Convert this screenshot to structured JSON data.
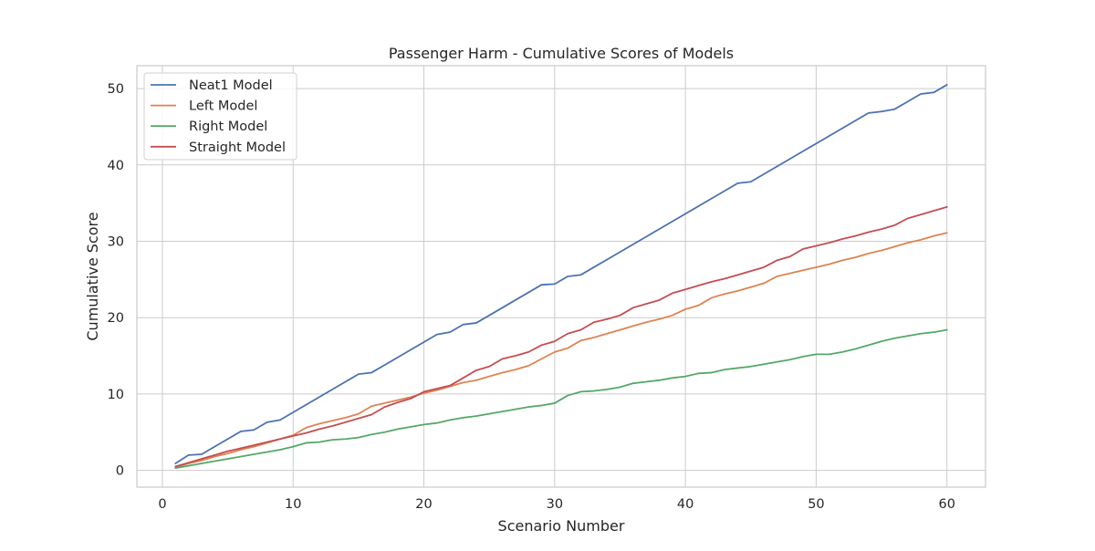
{
  "chart_data": {
    "type": "line",
    "title": "Passenger Harm - Cumulative Scores of Models",
    "xlabel": "Scenario Number",
    "ylabel": "Cumulative Score",
    "xlim": [
      -1.95,
      62.95
    ],
    "ylim": [
      -2.2,
      53.0
    ],
    "xticks": [
      0,
      10,
      20,
      30,
      40,
      50,
      60
    ],
    "yticks": [
      0,
      10,
      20,
      30,
      40,
      50
    ],
    "grid": true,
    "legend_position": "top-left",
    "x": [
      1,
      2,
      3,
      4,
      5,
      6,
      7,
      8,
      9,
      10,
      11,
      12,
      13,
      14,
      15,
      16,
      17,
      18,
      19,
      20,
      21,
      22,
      23,
      24,
      25,
      26,
      27,
      28,
      29,
      30,
      31,
      32,
      33,
      34,
      35,
      36,
      37,
      38,
      39,
      40,
      41,
      42,
      43,
      44,
      45,
      46,
      47,
      48,
      49,
      50,
      51,
      52,
      53,
      54,
      55,
      56,
      57,
      58,
      59,
      60
    ],
    "series": [
      {
        "name": "Neat1 Model",
        "color": "#4c72b0",
        "values": [
          0.9,
          2.0,
          2.1,
          3.1,
          4.1,
          5.1,
          5.3,
          6.3,
          6.6,
          7.6,
          8.6,
          9.6,
          10.6,
          11.6,
          12.6,
          12.8,
          13.8,
          14.8,
          15.8,
          16.8,
          17.8,
          18.1,
          19.1,
          19.3,
          20.3,
          21.3,
          22.3,
          23.3,
          24.3,
          24.4,
          25.4,
          25.6,
          26.6,
          27.6,
          28.6,
          29.6,
          30.6,
          31.6,
          32.6,
          33.6,
          34.6,
          35.6,
          36.6,
          37.6,
          37.8,
          38.8,
          39.8,
          40.8,
          41.8,
          42.8,
          43.8,
          44.8,
          45.8,
          46.8,
          47.0,
          47.3,
          48.3,
          49.3,
          49.5,
          50.5
        ]
      },
      {
        "name": "Left Model",
        "color": "#dd8452",
        "values": [
          0.4,
          0.9,
          1.3,
          1.8,
          2.2,
          2.7,
          3.1,
          3.6,
          4.1,
          4.6,
          5.6,
          6.1,
          6.5,
          6.9,
          7.4,
          8.4,
          8.8,
          9.2,
          9.6,
          10.1,
          10.5,
          11.0,
          11.5,
          11.8,
          12.3,
          12.8,
          13.2,
          13.7,
          14.6,
          15.5,
          16.0,
          17.0,
          17.4,
          17.9,
          18.4,
          18.9,
          19.4,
          19.8,
          20.3,
          21.1,
          21.6,
          22.6,
          23.1,
          23.5,
          24.0,
          24.5,
          25.4,
          25.8,
          26.2,
          26.6,
          27.0,
          27.5,
          27.9,
          28.4,
          28.8,
          29.3,
          29.8,
          30.2,
          30.7,
          31.1
        ]
      },
      {
        "name": "Right Model",
        "color": "#55a868",
        "values": [
          0.3,
          0.6,
          0.9,
          1.2,
          1.5,
          1.8,
          2.1,
          2.4,
          2.7,
          3.1,
          3.6,
          3.7,
          4.0,
          4.1,
          4.3,
          4.7,
          5.0,
          5.4,
          5.7,
          6.0,
          6.2,
          6.6,
          6.9,
          7.1,
          7.4,
          7.7,
          8.0,
          8.3,
          8.5,
          8.8,
          9.8,
          10.3,
          10.4,
          10.6,
          10.9,
          11.4,
          11.6,
          11.8,
          12.1,
          12.3,
          12.7,
          12.8,
          13.2,
          13.4,
          13.6,
          13.9,
          14.2,
          14.5,
          14.9,
          15.2,
          15.2,
          15.5,
          15.9,
          16.4,
          16.9,
          17.3,
          17.6,
          17.9,
          18.1,
          18.4
        ]
      },
      {
        "name": "Straight Model",
        "color": "#c44e52",
        "values": [
          0.5,
          1.0,
          1.5,
          2.0,
          2.5,
          2.9,
          3.3,
          3.7,
          4.1,
          4.5,
          4.9,
          5.4,
          5.8,
          6.3,
          6.8,
          7.3,
          8.3,
          8.9,
          9.4,
          10.3,
          10.7,
          11.1,
          12.1,
          13.1,
          13.6,
          14.6,
          15.0,
          15.5,
          16.4,
          16.9,
          17.9,
          18.4,
          19.4,
          19.8,
          20.3,
          21.3,
          21.8,
          22.3,
          23.2,
          23.7,
          24.2,
          24.7,
          25.1,
          25.6,
          26.1,
          26.6,
          27.5,
          28.0,
          29.0,
          29.4,
          29.8,
          30.3,
          30.7,
          31.2,
          31.6,
          32.1,
          33.0,
          33.5,
          34.0,
          34.5
        ]
      }
    ]
  }
}
